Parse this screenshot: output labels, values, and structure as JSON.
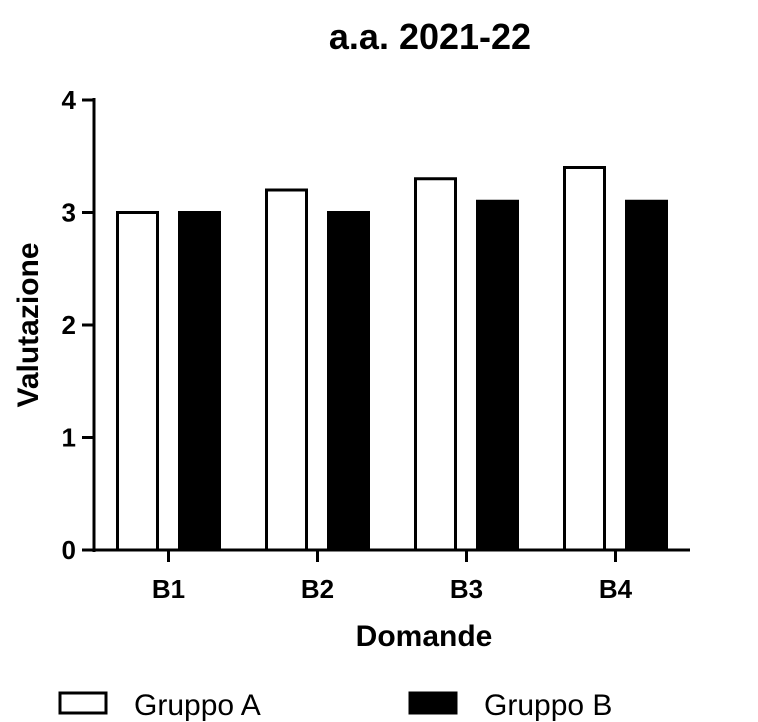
{
  "chart_data": {
    "type": "bar",
    "title": "a.a. 2021-22",
    "xlabel": "Domande",
    "ylabel": "Valutazione",
    "categories": [
      "B1",
      "B2",
      "B3",
      "B4"
    ],
    "series": [
      {
        "name": "Gruppo A",
        "values": [
          3.0,
          3.2,
          3.3,
          3.4
        ],
        "color": "#ffffff",
        "stroke": "#000000"
      },
      {
        "name": "Gruppo B",
        "values": [
          3.0,
          3.0,
          3.1,
          3.1
        ],
        "color": "#000000",
        "stroke": "#000000"
      }
    ],
    "ylim": [
      0,
      4
    ],
    "yticks": [
      0,
      1,
      2,
      3,
      4
    ],
    "grid": false,
    "legend_position": "bottom"
  }
}
